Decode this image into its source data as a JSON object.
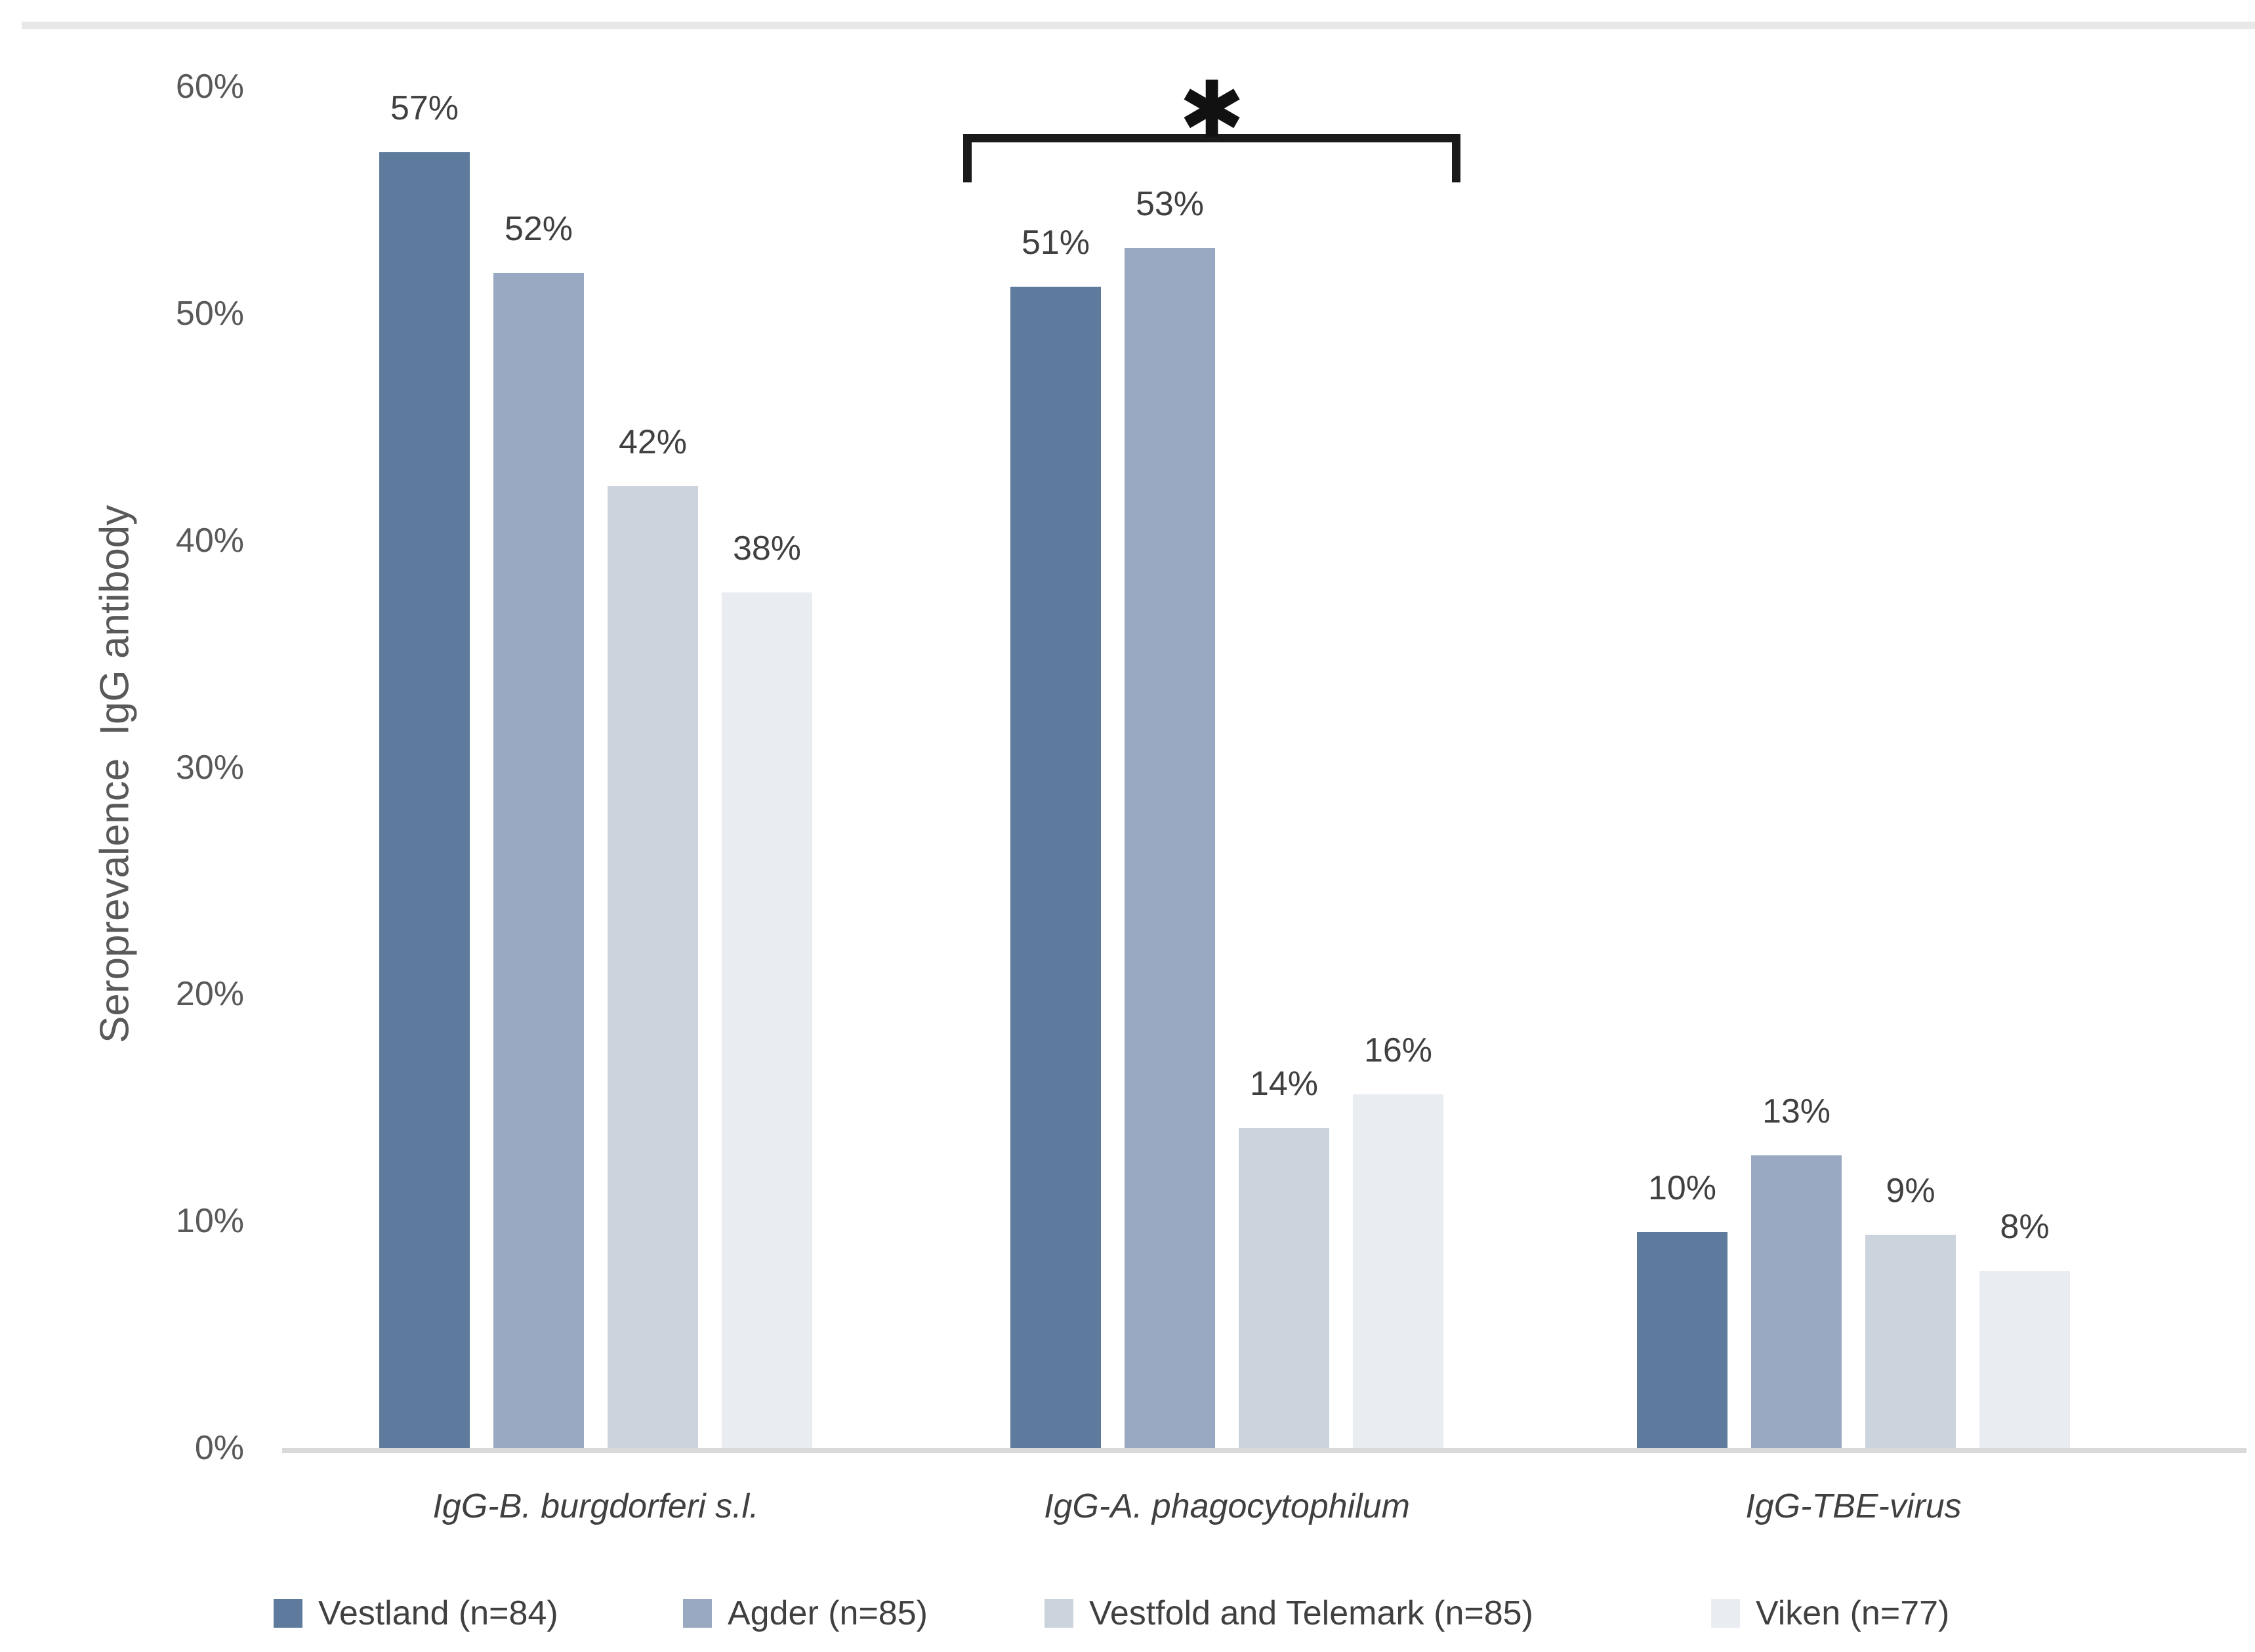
{
  "chart_data": {
    "type": "bar",
    "title": "",
    "ylabel": "Seroprevalence  IgG antibody",
    "xlabel": "",
    "categories": [
      "IgG-B. burgdorferi s.l.",
      "IgG-A. phagocytophilum",
      "IgG-TBE-virus"
    ],
    "series": [
      {
        "name": "Vestland (n=84)",
        "color": "#5E7B9D",
        "values_pct": [
          57.1,
          51.2,
          9.5
        ],
        "value_labels": [
          "57%",
          "51%",
          "10%"
        ]
      },
      {
        "name": "Agder (n=85)",
        "color": "#99A9C1",
        "values_pct": [
          51.8,
          52.9,
          12.9
        ],
        "value_labels": [
          "52%",
          "53%",
          "13%"
        ]
      },
      {
        "name": "Vestfold and Telemark (n=85)",
        "color": "#CBD3DD",
        "values_pct": [
          42.4,
          14.1,
          9.4
        ],
        "value_labels": [
          "42%",
          "14%",
          "9%"
        ]
      },
      {
        "name": "Viken (n=77)",
        "color": "#E9ECF1",
        "values_pct": [
          37.7,
          15.6,
          7.8
        ],
        "value_labels": [
          "38%",
          "16%",
          "8%"
        ]
      }
    ],
    "y_axis": {
      "min": 0,
      "max": 60,
      "step": 10,
      "tick_labels": [
        "0%",
        "10%",
        "20%",
        "30%",
        "40%",
        "50%",
        "60%"
      ]
    },
    "grid": false,
    "legend_position": "bottom",
    "annotation": {
      "symbol": "✱",
      "meaning": "significance-bracket",
      "category": "IgG-A. phagocytophilum"
    }
  },
  "colors": {
    "axis_line": "#D9D9D9",
    "top_border": "#E8E8E8",
    "tick_text": "#595959",
    "label_text": "#404040",
    "bracket": "#1a1a1a"
  }
}
